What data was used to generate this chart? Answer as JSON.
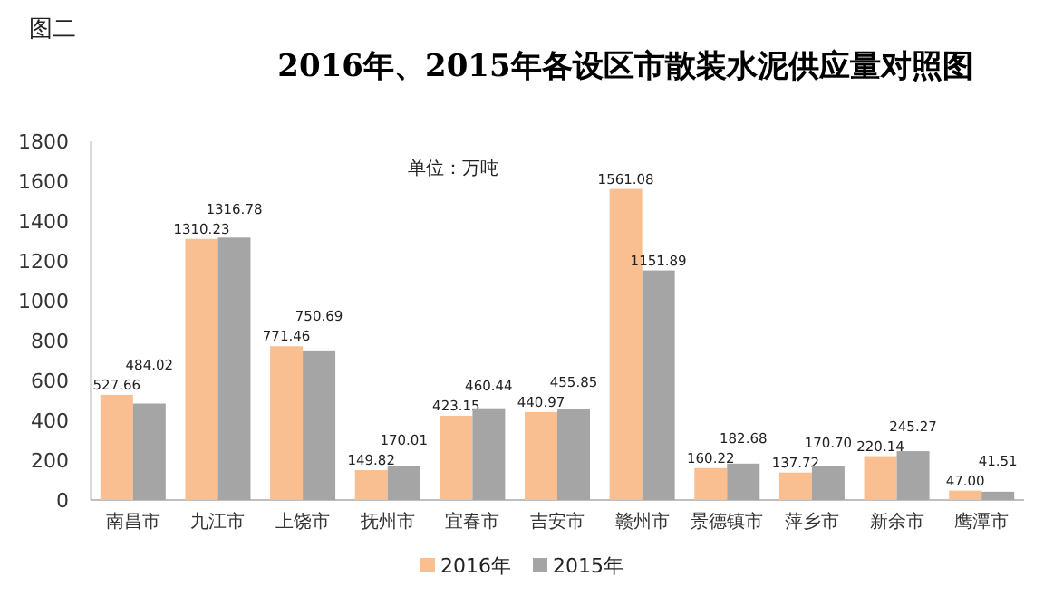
{
  "chart_data": {
    "type": "bar",
    "title": "2016年、2015年各设区市散装水泥供应量对照图",
    "annotations": [
      "图二",
      "单位：万吨"
    ],
    "categories": [
      "南昌市",
      "九江市",
      "上饶市",
      "抚州市",
      "宜春市",
      "吉安市",
      "赣州市",
      "景德镇市",
      "萍乡市",
      "新余市",
      "鹰潭市"
    ],
    "series": [
      {
        "name": "2016年",
        "color": "#f9bf90",
        "values": [
          527.66,
          1310.23,
          771.46,
          149.82,
          423.15,
          440.97,
          1561.08,
          160.22,
          137.72,
          220.14,
          47.0
        ],
        "value_labels": [
          "527.66",
          "1310.23",
          "771.46",
          "149.82",
          "423.15",
          "440.97",
          "1561.08",
          "160.22",
          "137.72",
          "220.14",
          "47.00"
        ]
      },
      {
        "name": "2015年",
        "color": "#a5a5a5",
        "values": [
          484.02,
          1316.78,
          750.69,
          170.01,
          460.44,
          455.85,
          1151.89,
          182.68,
          170.7,
          245.27,
          41.51
        ],
        "value_labels": [
          "484.02",
          "1316.78",
          "750.69",
          "170.01",
          "460.44",
          "455.85",
          "1151.89",
          "182.68",
          "170.70",
          "245.27",
          "41.51"
        ]
      }
    ],
    "ylim": [
      0,
      1800
    ],
    "yticks": [
      0,
      200,
      400,
      600,
      800,
      1000,
      1200,
      1400,
      1600,
      1800
    ],
    "grid": false,
    "legend": "bottom"
  }
}
